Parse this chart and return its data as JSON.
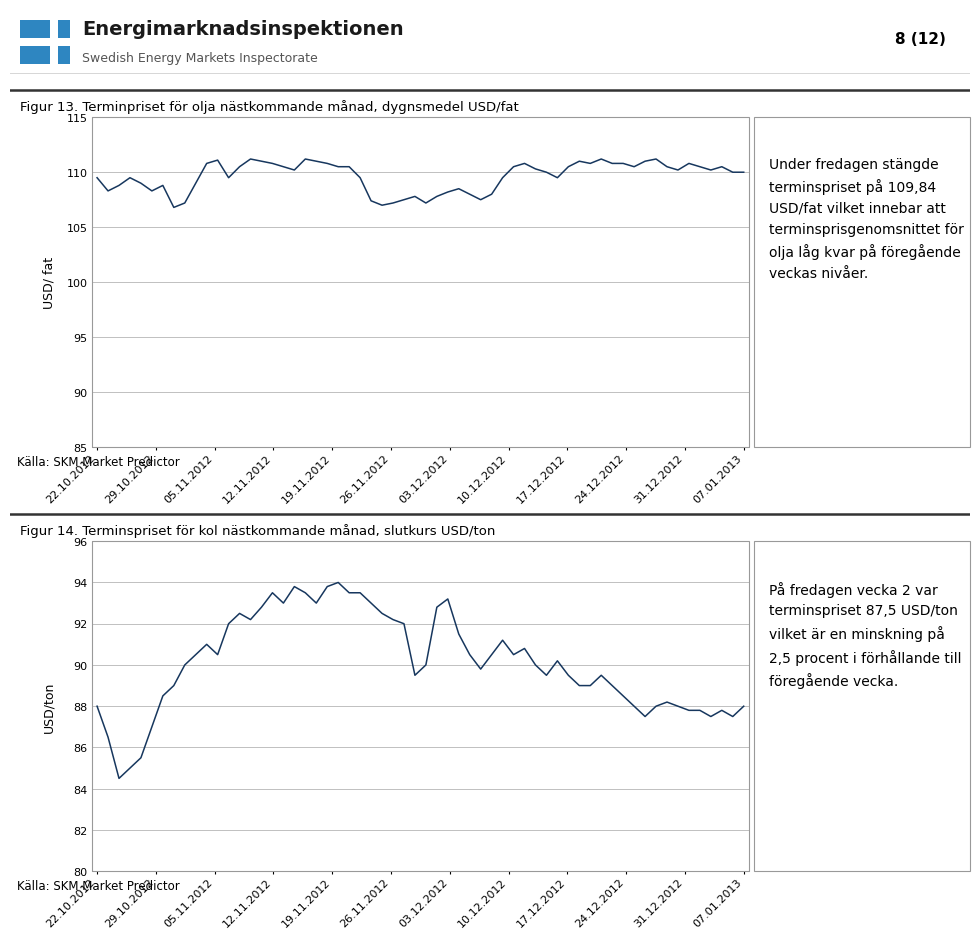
{
  "fig1_title": "Figur 13. Terminpriset för olja nästkommande månad, dygnsmedel USD/fat",
  "fig1_ylabel": "USD/ fat",
  "fig1_ylim": [
    85,
    115
  ],
  "fig1_yticks": [
    85,
    90,
    95,
    100,
    105,
    110,
    115
  ],
  "fig1_dates": [
    "22.10.2012",
    "29.10.2012",
    "05.11.2012",
    "12.11.2012",
    "19.11.2012",
    "26.11.2012",
    "03.12.2012",
    "10.12.2012",
    "17.12.2012",
    "24.12.2012",
    "31.12.2012",
    "07.01.2013"
  ],
  "fig1_values": [
    109.5,
    108.3,
    108.8,
    109.5,
    109.0,
    108.3,
    108.8,
    106.8,
    107.2,
    109.0,
    110.8,
    111.1,
    109.5,
    110.5,
    111.2,
    111.0,
    110.8,
    110.5,
    110.2,
    111.2,
    111.0,
    110.8,
    110.5,
    110.5,
    109.5,
    107.4,
    107.0,
    107.2,
    107.5,
    107.8,
    107.2,
    107.8,
    108.2,
    108.5,
    108.0,
    107.5,
    108.0,
    109.5,
    110.5,
    110.8,
    110.3,
    110.0,
    109.5,
    110.5,
    111.0,
    110.8,
    111.2,
    110.8,
    110.8,
    110.5,
    111.0,
    111.2,
    110.5,
    110.2,
    110.8,
    110.5,
    110.2,
    110.5,
    110.0,
    110.0
  ],
  "fig1_text": "Under fredagen stängde\nterminspriset på 109,84\nUSD/fat vilket innebar att\nterminsprisgenomsnittet för\nolja låg kvar på föregående\nveckas nivåer.",
  "fig1_source": "Källa: SKM Market Predictor",
  "fig2_title": "Figur 14. Terminspriset för kol nästkommande månad, slutkurs USD/ton",
  "fig2_ylabel": "USD/ton",
  "fig2_ylim": [
    80,
    96
  ],
  "fig2_yticks": [
    80,
    82,
    84,
    86,
    88,
    90,
    92,
    94,
    96
  ],
  "fig2_dates": [
    "22.10.2012",
    "29.10.2012",
    "05.11.2012",
    "12.11.2012",
    "19.11.2012",
    "26.11.2012",
    "03.12.2012",
    "10.12.2012",
    "17.12.2012",
    "24.12.2012",
    "31.12.2012",
    "07.01.2013"
  ],
  "fig2_values": [
    88.0,
    86.5,
    84.5,
    85.0,
    85.5,
    87.0,
    88.5,
    89.0,
    90.0,
    90.5,
    91.0,
    90.5,
    92.0,
    92.5,
    92.2,
    92.8,
    93.5,
    93.0,
    93.8,
    93.5,
    93.0,
    93.8,
    94.0,
    93.5,
    93.5,
    93.0,
    92.5,
    92.2,
    92.0,
    89.5,
    90.0,
    92.8,
    93.2,
    91.5,
    90.5,
    89.8,
    90.5,
    91.2,
    90.5,
    90.8,
    90.0,
    89.5,
    90.2,
    89.5,
    89.0,
    89.0,
    89.5,
    89.0,
    88.5,
    88.0,
    87.5,
    88.0,
    88.2,
    88.0,
    87.8,
    87.8,
    87.5,
    87.8,
    87.5,
    88.0
  ],
  "fig2_text": "På fredagen vecka 2 var\nterminspriset 87,5 USD/ton\nvilket är en minskning på\n2,5 procent i förhållande till\nföregående vecka.",
  "fig2_source": "Källa: SKM Market Predictor",
  "line_color": "#17375E",
  "grid_color": "#C0C0C0",
  "bg_color": "#FFFFFF",
  "logo_blue": "#2E86C1",
  "logo_text_color": "#1F1F1F",
  "title_fontsize": 9.5,
  "label_fontsize": 9,
  "tick_fontsize": 8,
  "text_fontsize": 10,
  "source_fontsize": 8.5,
  "page_num": "8 (12)"
}
